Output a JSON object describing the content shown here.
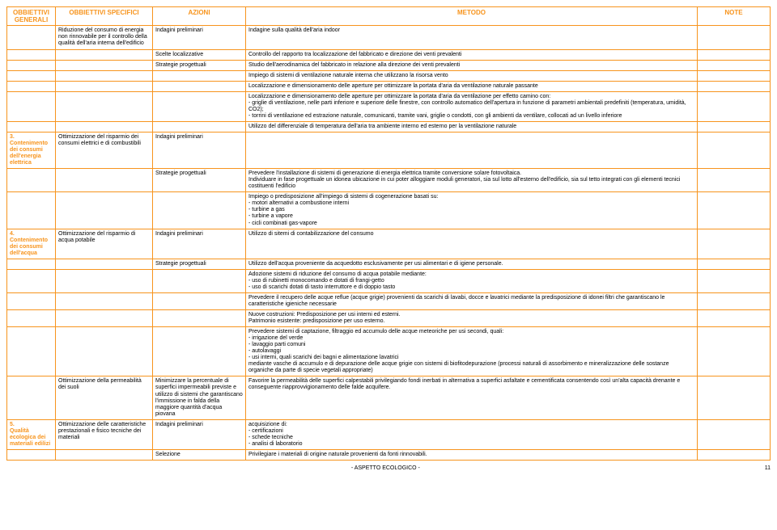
{
  "colors": {
    "accent": "#f7941d",
    "text": "#000000",
    "bg": "#ffffff"
  },
  "header": {
    "c1": "OBBIETTIVI GENERALI",
    "c2": "OBBIETTIVI SPECIFICI",
    "c3": "AZIONI",
    "c4": "METODO",
    "c5": "NOTE"
  },
  "rows": [
    {
      "gen": "",
      "spec": "Riduzione del consumo di energia non rinnovabile per il controllo della qualità dell'aria interna dell'edificio",
      "az": "Indagini preliminari",
      "met": "Indagine sulla qualità dell'aria indoor"
    },
    {
      "gen": "",
      "spec": "",
      "az": "Scelte localizzative",
      "met": "Controllo del rapporto tra localizzazione del fabbricato e direzione dei venti prevalenti"
    },
    {
      "gen": "",
      "spec": "",
      "az": "Strategie progettuali",
      "met": "Studio dell'aerodinamica del fabbricato in relazione alla direzione dei venti prevalenti"
    },
    {
      "gen": "",
      "spec": "",
      "az": "",
      "met": "Impiego di sistemi di ventilazione naturale interna che utilizzano la risorsa vento"
    },
    {
      "gen": "",
      "spec": "",
      "az": "",
      "met": "Localizzazione e dimensionamento delle aperture per ottimizzare la portata d'aria da ventilazione naturale passante"
    },
    {
      "gen": "",
      "spec": "",
      "az": "",
      "met": "Localizzazione e dimensionamento delle aperture per ottimizzare la portata d'aria da ventilazione per effetto camino con:\n-   griglie di ventilazione, nelle parti inferiore e superiore delle finestre, con controllo automatico dell'apertura in funzione di parametri ambientali predefiniti (temperatura, umidità, CO2);\n-   torrini di ventilazione ed estrazione naturale, comunicanti, tramite vani, griglie o condotti, con gli ambienti da ventilare, collocati ad un livello inferiore"
    },
    {
      "gen": "",
      "spec": "",
      "az": "",
      "met": "Utilizzo del differenziale di temperatura dell'aria tra ambiente interno ed esterno per la ventilazione naturale"
    },
    {
      "gen": "3.\nContenimento dei consumi dell'energia elettrica",
      "spec": "Ottimizzazione del risparmio dei consumi elettrici e di combustibili",
      "az": "Indagini preliminari",
      "met": ""
    },
    {
      "gen": "",
      "spec": "",
      "az": "Strategie progettuali",
      "met": "Prevedere l'installazione di sistemi di generazione di energia elettrica tramite conversione solare fotovoltaica.\nIndividuare in fase progettuale un idonea ubicazione in cui poter alloggiare moduli generatori, sia sul lotto all'esterno dell'edificio, sia sul tetto integrati con gli elementi tecnici costituenti l'edificio"
    },
    {
      "gen": "",
      "spec": "",
      "az": "",
      "met": "Impiego o predisposizione all'impiego di sistemi di cogenerazione basati su:\n-   motori alternativi a combustione interni\n-   turbine a gas\n-   turbine a vapore\n-   cicli combinati gas-vapore"
    },
    {
      "gen": "4.\nContenimento dei consumi dell'acqua",
      "spec": "Ottimizzazione del risparmio di  acqua potabile",
      "az": "Indagini preliminari",
      "met": "Utilizzo di sitemi di contabilizzazione del consumo"
    },
    {
      "gen": "",
      "spec": "",
      "az": "Strategie progettuali",
      "met": "Utilizzo dell'acqua proveniente da acquedotto esclusivamente per usi alimentari e di igiene personale."
    },
    {
      "gen": "",
      "spec": "",
      "az": "",
      "met": "Adozione sistemi di riduzione del consumo di acqua potabile mediante:\n-   uso di rubinetti monocomando e dotati di frangi-getto\n-   uso di scarichi dotati di tasto interruttore e di doppio tasto"
    },
    {
      "gen": "",
      "spec": "",
      "az": "",
      "met": "Prevedere il recupero delle acque reflue (acque grigie) provenienti da scarichi di lavabi, docce e lavatrici mediante la predisposizione di idonei filtri che garantiscano le caratteristiche igieniche necessarie"
    },
    {
      "gen": "",
      "spec": "",
      "az": "",
      "met": "Nuove costruzioni: Predisposizione per usi interni ed esterni.\nPatrimonio esistente: predisposizione per uso esterno."
    },
    {
      "gen": "",
      "spec": "",
      "az": "",
      "met": "Prevedere sistemi di captazione, filtraggio ed accumulo delle acque meteoriche per usi secondi, quali:\n-   irrigazione del verde\n-   lavaggio parti comuni\n-   autolavaggi\n-   usi interni, quali scarichi dei bagni e alimentazione lavatrici\nmediante vasche di accumulo e di depurazione delle acque grigie con sistemi di biofitodepurazione (processi naturali di assorbimento e mineralizzazione delle sostanze organiche da parte di specie vegetali appropriate)"
    },
    {
      "gen": "",
      "spec": "Ottimizzazione della permeabilità dei suoli",
      "az": "Minimizzare la percentuale di superfici impermeabili previste e utilizzo di sistemi che garantiscano l'immissione in falda della maggiore quantità d'acqua piovana",
      "met": "Favorire la permeabilità delle superfici calpestabili privilegiando fondi inerbati in alternativa a superfici asfaltate e cementificata consentendo così un'alta capacità drenante e conseguente riapprovvigionamento delle falde acquifere."
    },
    {
      "gen": "5.\nQualità ecologica dei materiali edilizi",
      "spec": "Ottimizzazione delle caratteristiche prestazionali e fisico tecniche dei materiali",
      "az": "Indagini preliminari",
      "met": "acquisizione di:\n-   certificazioni\n-   schede tecniche\n-   analisi di laboratorio"
    },
    {
      "gen": "",
      "spec": "",
      "az": "Selezione",
      "met": "Privilegiare i materiali di origine naturale provenienti da fonti rinnovabili."
    }
  ],
  "footer": {
    "center": "- ASPETTO ECOLOGICO -",
    "page": "11"
  }
}
